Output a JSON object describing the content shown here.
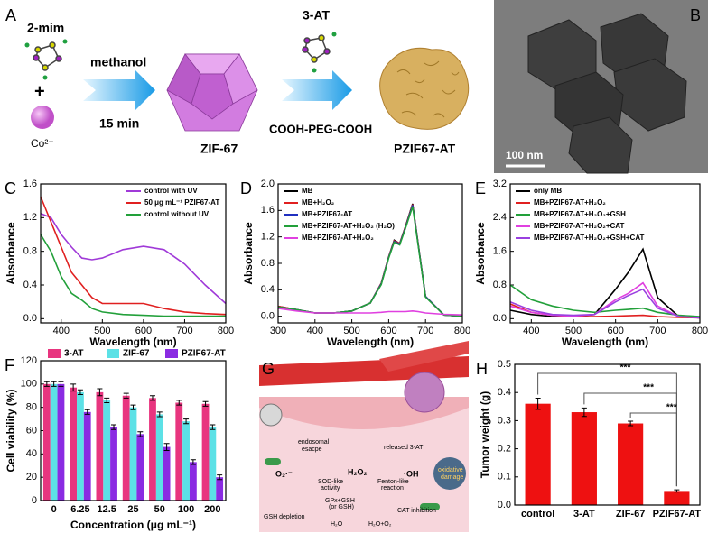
{
  "scheme": {
    "panel_label": "A",
    "reactant1": "2-mim",
    "plus": "+",
    "reactant2": "Co²⁺",
    "step1_top": "methanol",
    "step1_bottom": "15 min",
    "product1": "ZIF-67",
    "reagent2": "3-AT",
    "step2_bottom": "COOH-PEG-COOH",
    "product2": "PZIF67-AT"
  },
  "micrograph": {
    "panel_label": "B",
    "scale_bar": "100 nm"
  },
  "mechanism": {
    "panel_label": "G",
    "labels": [
      "endosomal",
      "esacpe",
      "released 3-AT",
      "O₂·⁻",
      "SOD-like",
      "activity",
      "H₂O₂",
      "·OH",
      "Fenton-like",
      "reaction",
      "oxidative",
      "damage",
      "GPx+GSH",
      "(or GSH)",
      "CAT inhibition",
      "GSH depletion",
      "H₂O",
      "H₂O+O₂"
    ]
  },
  "chart_data": [
    {
      "type": "line",
      "panel_label": "C",
      "x_label": "Wavelength (nm)",
      "y_label": "Absorbance",
      "legend": "upper right",
      "x": [
        350,
        375,
        400,
        425,
        450,
        475,
        500,
        550,
        600,
        650,
        700,
        750,
        800
      ],
      "xlim": [
        350,
        800
      ],
      "xticks": [
        400,
        500,
        600,
        700,
        800
      ],
      "ylim": [
        -0.05,
        1.6
      ],
      "yticks": [
        {
          "value": 0,
          "label": "0.0"
        },
        0.4,
        0.8,
        1.2,
        1.6
      ],
      "series": [
        {
          "name": "control with UV",
          "color": "#a03ad8",
          "values": [
            1.25,
            1.2,
            1.0,
            0.85,
            0.72,
            0.7,
            0.72,
            0.82,
            0.86,
            0.82,
            0.65,
            0.4,
            0.18
          ]
        },
        {
          "name": "50 μg mL⁻¹ PZIF67-AT",
          "color": "#e02020",
          "values": [
            1.45,
            1.15,
            0.85,
            0.55,
            0.4,
            0.25,
            0.18,
            0.18,
            0.18,
            0.12,
            0.08,
            0.06,
            0.05
          ]
        },
        {
          "name": "control without UV",
          "color": "#22a03a",
          "values": [
            1.0,
            0.8,
            0.5,
            0.3,
            0.22,
            0.12,
            0.08,
            0.05,
            0.04,
            0.03,
            0.03,
            0.03,
            0.03
          ]
        }
      ]
    },
    {
      "type": "line",
      "panel_label": "D",
      "x_label": "Wavelength (nm)",
      "y_label": "Absorbance",
      "legend": "upper left",
      "x": [
        300,
        350,
        400,
        450,
        500,
        550,
        580,
        600,
        615,
        630,
        645,
        665,
        680,
        700,
        750,
        800
      ],
      "xlim": [
        300,
        800
      ],
      "xticks": [
        300,
        400,
        500,
        600,
        700,
        800
      ],
      "ylim": [
        -0.1,
        2.0
      ],
      "yticks": [
        {
          "value": 0,
          "label": "0.0"
        },
        0.4,
        0.8,
        1.2,
        1.6,
        {
          "value": 2,
          "label": "2.0"
        }
      ],
      "series": [
        {
          "name": "MB",
          "color": "#000000",
          "values": [
            0.15,
            0.1,
            0.05,
            0.05,
            0.08,
            0.2,
            0.5,
            0.9,
            1.15,
            1.1,
            1.35,
            1.7,
            1.1,
            0.3,
            0.02,
            0.0
          ]
        },
        {
          "name": "MB+H₂O₂",
          "color": "#e02020",
          "values": [
            0.15,
            0.1,
            0.05,
            0.05,
            0.08,
            0.2,
            0.5,
            0.9,
            1.14,
            1.1,
            1.34,
            1.69,
            1.1,
            0.3,
            0.02,
            0.0
          ]
        },
        {
          "name": "MB+PZIF67-AT",
          "color": "#2030c0",
          "values": [
            0.14,
            0.1,
            0.05,
            0.05,
            0.08,
            0.2,
            0.49,
            0.89,
            1.13,
            1.09,
            1.33,
            1.68,
            1.09,
            0.3,
            0.02,
            0.0
          ]
        },
        {
          "name": "MB+PZIF67-AT+H₂O₂ (H₂O)",
          "color": "#22a03a",
          "values": [
            0.14,
            0.1,
            0.05,
            0.05,
            0.08,
            0.2,
            0.48,
            0.88,
            1.12,
            1.08,
            1.32,
            1.66,
            1.08,
            0.29,
            0.02,
            0.0
          ]
        },
        {
          "name": "MB+PZIF67-AT+H₂O₂",
          "color": "#e040e0",
          "values": [
            0.12,
            0.08,
            0.05,
            0.05,
            0.05,
            0.05,
            0.06,
            0.07,
            0.07,
            0.07,
            0.07,
            0.08,
            0.07,
            0.05,
            0.03,
            0.02
          ]
        }
      ]
    },
    {
      "type": "line",
      "panel_label": "E",
      "x_label": "Wavelength (nm)",
      "y_label": "Absorbance",
      "legend": "upper left",
      "x": [
        350,
        400,
        450,
        500,
        550,
        600,
        630,
        665,
        700,
        750,
        800
      ],
      "xlim": [
        350,
        800
      ],
      "xticks": [
        400,
        500,
        600,
        700,
        800
      ],
      "ylim": [
        -0.1,
        3.2
      ],
      "yticks": [
        {
          "value": 0,
          "label": "0.0"
        },
        0.8,
        1.6,
        2.4,
        3.2
      ],
      "series": [
        {
          "name": "only MB",
          "color": "#000000",
          "values": [
            0.2,
            0.1,
            0.05,
            0.05,
            0.1,
            0.7,
            1.1,
            1.65,
            0.5,
            0.05,
            0.02
          ]
        },
        {
          "name": "MB+PZIF67-AT+H₂O₂",
          "color": "#e02020",
          "values": [
            0.35,
            0.15,
            0.08,
            0.05,
            0.05,
            0.06,
            0.07,
            0.08,
            0.05,
            0.03,
            0.02
          ]
        },
        {
          "name": "MB+PZIF67-AT+H₂O₂+GSH",
          "color": "#22a03a",
          "values": [
            0.8,
            0.45,
            0.3,
            0.2,
            0.15,
            0.2,
            0.22,
            0.25,
            0.15,
            0.08,
            0.05
          ]
        },
        {
          "name": "MB+PZIF67-AT+H₂O₂+CAT",
          "color": "#e040e0",
          "values": [
            0.3,
            0.15,
            0.08,
            0.06,
            0.1,
            0.45,
            0.6,
            0.85,
            0.3,
            0.05,
            0.02
          ]
        },
        {
          "name": "MB+PZIF67-AT+H₂O₂+GSH+CAT",
          "color": "#9a40e0",
          "values": [
            0.4,
            0.2,
            0.1,
            0.08,
            0.1,
            0.4,
            0.55,
            0.7,
            0.25,
            0.05,
            0.02
          ]
        }
      ]
    },
    {
      "type": "bar",
      "panel_label": "F",
      "x_label": "Concentration (μg mL⁻¹)",
      "y_label": "Cell viability (%)",
      "legend": "top",
      "categories": [
        "0",
        "6.25",
        "12.5",
        "25",
        "50",
        "100",
        "200"
      ],
      "ylim": [
        0,
        120
      ],
      "yticks": [
        0,
        20,
        40,
        60,
        80,
        100,
        120
      ],
      "series": [
        {
          "name": "3-AT",
          "color": "#e8357f",
          "values": [
            100,
            97,
            93,
            90,
            88,
            84,
            83
          ],
          "errors": [
            2,
            3,
            3,
            2,
            2,
            2,
            2
          ]
        },
        {
          "name": "ZIF-67",
          "color": "#5ce1e6",
          "values": [
            100,
            93,
            86,
            80,
            74,
            68,
            63
          ],
          "errors": [
            2,
            2,
            2,
            2,
            2,
            2,
            2
          ]
        },
        {
          "name": "PZIF67-AT",
          "color": "#8a2be2",
          "values": [
            100,
            76,
            63,
            57,
            46,
            33,
            20
          ],
          "errors": [
            2,
            2,
            2,
            2,
            3,
            2,
            2
          ]
        }
      ]
    },
    {
      "type": "bar",
      "panel_label": "H",
      "y_label": "Tumor weight (g)",
      "categories": [
        "control",
        "3-AT",
        "ZIF-67",
        "PZIF67-AT"
      ],
      "values": [
        0.36,
        0.33,
        0.29,
        0.05
      ],
      "errors": [
        0.02,
        0.015,
        0.008,
        0.004
      ],
      "color": "#ee1111",
      "ylim": [
        0,
        0.5
      ],
      "yticks": [
        {
          "value": 0,
          "label": "0.0"
        },
        0.1,
        0.2,
        0.3,
        0.4,
        0.5
      ],
      "annotations": [
        "***",
        "***",
        "***"
      ]
    }
  ]
}
